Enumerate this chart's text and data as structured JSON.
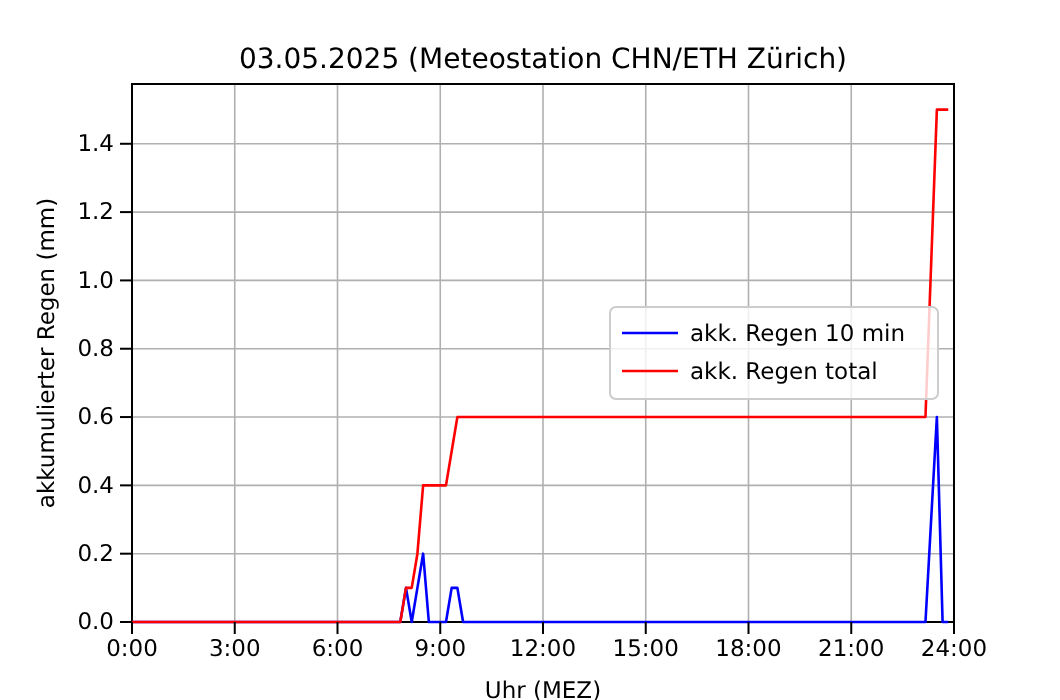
{
  "chart_data": {
    "type": "line",
    "title": "03.05.2025  (Meteostation CHN/ETH Zürich)",
    "xlabel": "Uhr (MEZ)",
    "ylabel": "akkumulierter Regen (mm)",
    "xlim": [
      0,
      24
    ],
    "xticks": [
      {
        "value": 0,
        "label": "0:00"
      },
      {
        "value": 3,
        "label": "3:00"
      },
      {
        "value": 6,
        "label": "6:00"
      },
      {
        "value": 9,
        "label": "9:00"
      },
      {
        "value": 12,
        "label": "12:00"
      },
      {
        "value": 15,
        "label": "15:00"
      },
      {
        "value": 18,
        "label": "18:00"
      },
      {
        "value": 21,
        "label": "21:00"
      },
      {
        "value": 24,
        "label": "24:00"
      }
    ],
    "ylim": [
      0,
      1.575
    ],
    "yticks": [
      {
        "value": 0,
        "label": "0.0"
      },
      {
        "value": 0.2,
        "label": "0.2"
      },
      {
        "value": 0.4,
        "label": "0.4"
      },
      {
        "value": 0.6,
        "label": "0.6"
      },
      {
        "value": 0.8,
        "label": "0.8"
      },
      {
        "value": 1,
        "label": "1.0"
      },
      {
        "value": 1.2,
        "label": "1.2"
      },
      {
        "value": 1.4,
        "label": "1.4"
      }
    ],
    "grid": true,
    "legend": "right",
    "line_style": "solid",
    "marker": "none",
    "series": [
      {
        "name": "akk. Regen 10 min",
        "color": "#0000ff",
        "x": [
          0,
          7.833,
          8,
          8.167,
          8.333,
          8.5,
          8.667,
          9.167,
          9.333,
          9.5,
          9.667,
          23.167,
          23.333,
          23.5,
          23.667,
          23.833
        ],
        "values": [
          0,
          0,
          0.1,
          0,
          0.1,
          0.2,
          0,
          0,
          0.1,
          0.1,
          0,
          0,
          0.3,
          0.6,
          0,
          0
        ]
      },
      {
        "name": "akk. Regen total",
        "color": "#ff0000",
        "x": [
          0,
          7.833,
          8,
          8.167,
          8.333,
          8.5,
          9.167,
          9.333,
          9.5,
          23.167,
          23.5,
          23.833
        ],
        "values": [
          0,
          0,
          0.1,
          0.1,
          0.2,
          0.4,
          0.4,
          0.5,
          0.6,
          0.6,
          1.5,
          1.5
        ]
      }
    ]
  }
}
